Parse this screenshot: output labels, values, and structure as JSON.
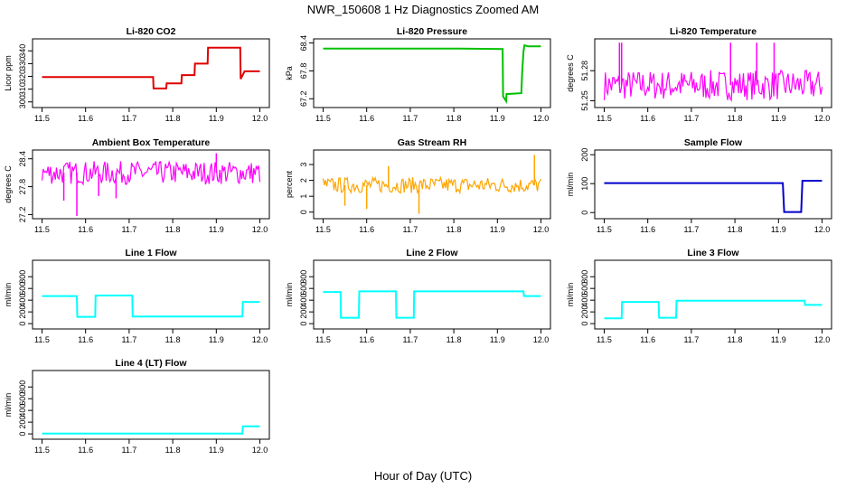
{
  "figure": {
    "title": "NWR_150608  1 Hz Diagnostics Zoomed AM",
    "xlabel": "Hour of Day (UTC)"
  },
  "chart_data": [
    {
      "id": "co2",
      "type": "line",
      "title": "Li-820 CO2",
      "xlabel": "",
      "ylabel": "Licor ppm",
      "color": "#e00000",
      "xlim": [
        11.5,
        12.0
      ],
      "xticks": [
        11.5,
        11.6,
        11.7,
        11.8,
        11.9,
        12.0
      ],
      "ylim": [
        297,
        348
      ],
      "yticks": [
        300,
        310,
        320,
        330,
        340
      ],
      "series": [
        {
          "x": [
            11.5,
            11.6,
            11.7,
            11.755,
            11.756,
            11.785,
            11.786,
            11.82,
            11.821,
            11.85,
            11.851,
            11.88,
            11.881,
            11.955,
            11.956,
            11.965,
            11.966,
            12.0
          ],
          "y": [
            319.5,
            319.5,
            319.5,
            319.5,
            310.5,
            310.5,
            314.5,
            314.5,
            321,
            321,
            330,
            330,
            342.5,
            342.5,
            318,
            324,
            324,
            324
          ]
        }
      ]
    },
    {
      "id": "pressure",
      "type": "line",
      "title": "Li-820 Pressure",
      "xlabel": "",
      "ylabel": "kPa",
      "color": "#00c000",
      "xlim": [
        11.5,
        12.0
      ],
      "xticks": [
        11.5,
        11.6,
        11.7,
        11.8,
        11.9,
        12.0
      ],
      "ylim": [
        67.05,
        68.45
      ],
      "yticks": [
        67.2,
        67.8,
        68.4
      ],
      "series": [
        {
          "x": [
            11.5,
            11.6,
            11.7,
            11.8,
            11.912,
            11.913,
            11.92,
            11.921,
            11.955,
            11.957,
            11.96,
            11.962,
            11.97,
            12.0
          ],
          "y": [
            68.28,
            68.28,
            68.28,
            68.28,
            68.27,
            67.25,
            67.15,
            67.3,
            67.32,
            67.8,
            68.22,
            68.35,
            68.33,
            68.33
          ]
        }
      ]
    },
    {
      "id": "licor_temp",
      "type": "line",
      "title": "Li-820 Temperature",
      "xlabel": "",
      "ylabel": "degrees C",
      "color": "#ff00ff",
      "xlim": [
        11.5,
        12.0
      ],
      "xticks": [
        11.5,
        11.6,
        11.7,
        11.8,
        11.9,
        12.0
      ],
      "ylim": [
        51.245,
        51.31
      ],
      "yticks": [
        51.25,
        51.28
      ],
      "band": {
        "low": 51.2505,
        "high": 51.2805
      },
      "spikes": [
        {
          "x": 11.535,
          "y": 51.308
        },
        {
          "x": 11.54,
          "y": 51.308
        },
        {
          "x": 11.79,
          "y": 51.308
        },
        {
          "x": 11.85,
          "y": 51.308
        },
        {
          "x": 11.89,
          "y": 51.308
        }
      ]
    },
    {
      "id": "ambient",
      "type": "line",
      "title": "Ambient Box Temperature",
      "xlabel": "",
      "ylabel": "degrees C",
      "color": "#ff00ff",
      "xlim": [
        11.5,
        12.0
      ],
      "xticks": [
        11.5,
        11.6,
        11.7,
        11.8,
        11.9,
        12.0
      ],
      "ylim": [
        27.15,
        28.55
      ],
      "yticks": [
        27.2,
        27.8,
        28.4
      ],
      "band": {
        "low": 27.85,
        "high": 28.35
      },
      "spikes": [
        {
          "x": 11.58,
          "y": 27.17
        },
        {
          "x": 11.55,
          "y": 27.5
        },
        {
          "x": 11.63,
          "y": 27.6
        },
        {
          "x": 11.67,
          "y": 27.55
        },
        {
          "x": 11.9,
          "y": 28.52
        }
      ]
    },
    {
      "id": "rh",
      "type": "line",
      "title": "Gas Stream RH",
      "xlabel": "",
      "ylabel": "percent",
      "color": "#ffa500",
      "xlim": [
        11.5,
        12.0
      ],
      "xticks": [
        11.5,
        11.6,
        11.7,
        11.8,
        11.9,
        12.0
      ],
      "ylim": [
        -0.3,
        3.8
      ],
      "yticks": [
        0,
        1,
        2,
        3
      ],
      "band": {
        "low": 1.2,
        "high": 2.2
      },
      "spikes": [
        {
          "x": 11.6,
          "y": 0.2
        },
        {
          "x": 11.72,
          "y": -0.1
        },
        {
          "x": 11.65,
          "y": 2.9
        },
        {
          "x": 11.985,
          "y": 3.6
        },
        {
          "x": 11.55,
          "y": 0.4
        }
      ]
    },
    {
      "id": "sample_flow",
      "type": "line",
      "title": "Sample Flow",
      "xlabel": "",
      "ylabel": "ml/min",
      "color": "#0000cc",
      "xlim": [
        11.5,
        12.0
      ],
      "xticks": [
        11.5,
        11.6,
        11.7,
        11.8,
        11.9,
        12.0
      ],
      "ylim": [
        -15,
        210
      ],
      "yticks": [
        0,
        100,
        200
      ],
      "series": [
        {
          "x": [
            11.5,
            11.6,
            11.7,
            11.8,
            11.91,
            11.913,
            11.952,
            11.955,
            12.0
          ],
          "y": [
            102,
            102,
            102,
            102,
            102,
            2,
            2,
            110,
            110
          ]
        }
      ]
    },
    {
      "id": "line1",
      "type": "line",
      "title": "Line 1 Flow",
      "xlabel": "",
      "ylabel": "ml/min",
      "color": "#00ffff",
      "xlim": [
        11.5,
        12.0
      ],
      "xticks": [
        11.5,
        11.6,
        11.7,
        11.8,
        11.9,
        12.0
      ],
      "ylim": [
        -60,
        1050
      ],
      "yticks": [
        0,
        200,
        400,
        600,
        800
      ],
      "series": [
        {
          "x": [
            11.5,
            11.58,
            11.581,
            11.622,
            11.623,
            11.707,
            11.708,
            11.96,
            11.961,
            12.0
          ],
          "y": [
            470,
            470,
            115,
            115,
            480,
            480,
            120,
            120,
            370,
            370
          ]
        }
      ]
    },
    {
      "id": "line2",
      "type": "line",
      "title": "Line 2 Flow",
      "xlabel": "",
      "ylabel": "ml/min",
      "color": "#00ffff",
      "xlim": [
        11.5,
        12.0
      ],
      "xticks": [
        11.5,
        11.6,
        11.7,
        11.8,
        11.9,
        12.0
      ],
      "ylim": [
        -60,
        1050
      ],
      "yticks": [
        0,
        200,
        400,
        600,
        800
      ],
      "series": [
        {
          "x": [
            11.5,
            11.54,
            11.541,
            11.582,
            11.583,
            11.667,
            11.668,
            11.708,
            11.709,
            11.96,
            11.961,
            12.0
          ],
          "y": [
            540,
            540,
            100,
            100,
            550,
            550,
            100,
            100,
            550,
            550,
            470,
            470
          ]
        }
      ]
    },
    {
      "id": "line3",
      "type": "line",
      "title": "Line 3 Flow",
      "xlabel": "",
      "ylabel": "ml/min",
      "color": "#00ffff",
      "xlim": [
        11.5,
        12.0
      ],
      "xticks": [
        11.5,
        11.6,
        11.7,
        11.8,
        11.9,
        12.0
      ],
      "ylim": [
        -60,
        1050
      ],
      "yticks": [
        0,
        200,
        400,
        600,
        800
      ],
      "series": [
        {
          "x": [
            11.5,
            11.54,
            11.541,
            11.625,
            11.626,
            11.665,
            11.666,
            11.96,
            11.961,
            12.0
          ],
          "y": [
            90,
            90,
            370,
            370,
            100,
            100,
            390,
            390,
            320,
            320
          ]
        }
      ]
    },
    {
      "id": "line4",
      "type": "line",
      "title": "Line 4 (LT) Flow",
      "xlabel": "",
      "ylabel": "ml/min",
      "color": "#00ffff",
      "xlim": [
        11.5,
        12.0
      ],
      "xticks": [
        11.5,
        11.6,
        11.7,
        11.8,
        11.9,
        12.0
      ],
      "ylim": [
        -60,
        1050
      ],
      "yticks": [
        0,
        200,
        400,
        600,
        800
      ],
      "series": [
        {
          "x": [
            11.5,
            11.6,
            11.7,
            11.8,
            11.9,
            11.96,
            11.961,
            12.0
          ],
          "y": [
            5,
            5,
            5,
            5,
            5,
            5,
            130,
            130
          ]
        }
      ]
    }
  ]
}
